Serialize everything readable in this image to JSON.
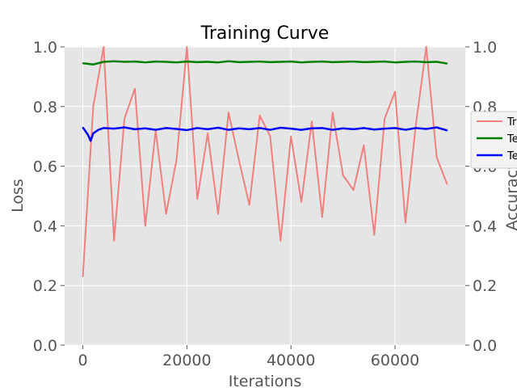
{
  "chart_data": {
    "type": "line",
    "title": "Training Curve",
    "xlabel": "Iterations",
    "ylabel": "Loss",
    "y2label": "Accuracy",
    "xlim": [
      -3500,
      73500
    ],
    "ylim": [
      0.0,
      1.0
    ],
    "y2lim": [
      0.0,
      1.0
    ],
    "x_ticks": [
      0,
      20000,
      40000,
      60000
    ],
    "x_tick_labels": [
      "0",
      "20000",
      "40000",
      "60000"
    ],
    "y_ticks": [
      0.0,
      0.2,
      0.4,
      0.6,
      0.8,
      1.0
    ],
    "y_tick_labels": [
      "0.0",
      "0.2",
      "0.4",
      "0.6",
      "0.8",
      "1.0"
    ],
    "y2_ticks": [
      0.0,
      0.2,
      0.4,
      0.6,
      0.8,
      1.0
    ],
    "y2_tick_labels": [
      "0.0",
      "0.2",
      "0.4",
      "0.6",
      "0.8",
      "1.0"
    ],
    "grid": true,
    "legend": {
      "placement": "right",
      "entries": [
        "Tr",
        "Te",
        "Te"
      ]
    },
    "colors": {
      "train_loss": "#f08080",
      "test_accuracy_top": "#008000",
      "test_accuracy_mid": "#0000ff",
      "background": "#e5e5e5",
      "grid": "#ffffff"
    },
    "series": [
      {
        "axis": "left",
        "x": [
          0,
          2000,
          4000,
          6000,
          8000,
          10000,
          12000,
          14000,
          16000,
          18000,
          20000,
          22000,
          24000,
          26000,
          28000,
          30000,
          32000,
          34000,
          36000,
          38000,
          40000,
          42000,
          44000,
          46000,
          48000,
          50000,
          52000,
          54000,
          56000,
          58000,
          60000,
          62000,
          64000,
          66000,
          68000,
          70000
        ],
        "values": [
          0.23,
          0.8,
          1.0,
          0.35,
          0.76,
          0.86,
          0.4,
          0.72,
          0.44,
          0.62,
          1.0,
          0.49,
          0.71,
          0.44,
          0.78,
          0.62,
          0.47,
          0.77,
          0.7,
          0.35,
          0.7,
          0.48,
          0.75,
          0.43,
          0.78,
          0.57,
          0.52,
          0.67,
          0.37,
          0.76,
          0.85,
          0.41,
          0.74,
          1.0,
          0.63,
          0.54
        ]
      },
      {
        "axis": "right",
        "x": [
          0,
          2000,
          4000,
          6000,
          8000,
          10000,
          12000,
          14000,
          16000,
          18000,
          20000,
          22000,
          24000,
          26000,
          28000,
          30000,
          32000,
          34000,
          36000,
          38000,
          40000,
          42000,
          44000,
          46000,
          48000,
          50000,
          52000,
          54000,
          56000,
          58000,
          60000,
          62000,
          64000,
          66000,
          68000,
          70000
        ],
        "values": [
          0.945,
          0.941,
          0.95,
          0.952,
          0.95,
          0.951,
          0.948,
          0.951,
          0.95,
          0.948,
          0.951,
          0.949,
          0.95,
          0.948,
          0.952,
          0.949,
          0.95,
          0.951,
          0.949,
          0.95,
          0.951,
          0.948,
          0.95,
          0.951,
          0.949,
          0.95,
          0.951,
          0.949,
          0.95,
          0.951,
          0.948,
          0.95,
          0.951,
          0.949,
          0.95,
          0.944
        ]
      },
      {
        "axis": "right",
        "x": [
          0,
          1000,
          1500,
          2000,
          3000,
          4000,
          6000,
          8000,
          10000,
          12000,
          14000,
          16000,
          18000,
          20000,
          22000,
          24000,
          26000,
          28000,
          30000,
          32000,
          34000,
          36000,
          38000,
          40000,
          42000,
          44000,
          46000,
          48000,
          50000,
          52000,
          54000,
          56000,
          58000,
          60000,
          62000,
          64000,
          66000,
          68000,
          70000
        ],
        "values": [
          0.73,
          0.705,
          0.685,
          0.71,
          0.722,
          0.728,
          0.726,
          0.73,
          0.724,
          0.727,
          0.722,
          0.728,
          0.725,
          0.721,
          0.728,
          0.724,
          0.729,
          0.722,
          0.727,
          0.724,
          0.728,
          0.722,
          0.729,
          0.726,
          0.722,
          0.727,
          0.728,
          0.722,
          0.727,
          0.724,
          0.728,
          0.723,
          0.726,
          0.728,
          0.722,
          0.728,
          0.725,
          0.73,
          0.72
        ]
      }
    ]
  }
}
